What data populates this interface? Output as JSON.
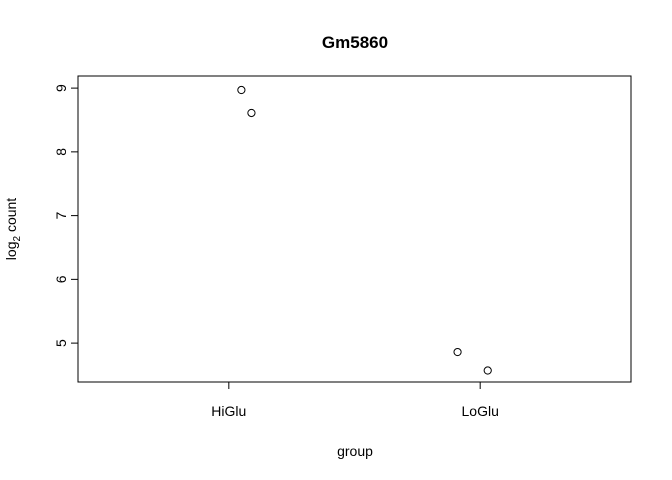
{
  "chart_data": {
    "type": "scatter",
    "title": "Gm5860",
    "xlabel": "group",
    "ylabel_main": "log",
    "ylabel_sub": "2",
    "ylabel_rest": " count",
    "categories": [
      "HiGlu",
      "LoGlu"
    ],
    "points": [
      {
        "category": "HiGlu",
        "jitter": 0.05,
        "y": 8.97
      },
      {
        "category": "HiGlu",
        "jitter": 0.09,
        "y": 8.61
      },
      {
        "category": "LoGlu",
        "jitter": -0.09,
        "y": 4.86
      },
      {
        "category": "LoGlu",
        "jitter": 0.03,
        "y": 4.57
      }
    ],
    "yticks": [
      5,
      6,
      7,
      8,
      9
    ],
    "ylim": [
      4.39,
      9.19
    ],
    "xlim": [
      0.4,
      2.6
    ],
    "grid": false,
    "legend": "none",
    "colors": {
      "axis": "#000000",
      "point_stroke": "#000000",
      "background": "#ffffff"
    }
  }
}
